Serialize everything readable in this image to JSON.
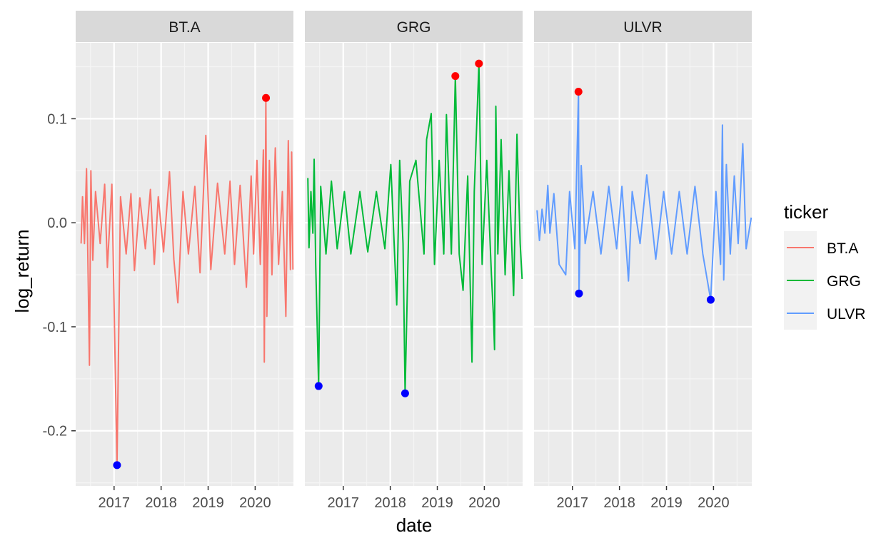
{
  "chart_data": {
    "type": "line",
    "xlabel": "date",
    "ylabel": "log_return",
    "ylim": [
      -0.253,
      0.173
    ],
    "xlim": [
      "2016-03-09",
      "2020-10-24"
    ],
    "x_ticks": [
      {
        "date": "2017-01-01",
        "label": "2017"
      },
      {
        "date": "2018-01-01",
        "label": "2018"
      },
      {
        "date": "2019-01-01",
        "label": "2019"
      },
      {
        "date": "2020-01-01",
        "label": "2020"
      }
    ],
    "y_ticks": [
      {
        "value": 0.1,
        "label": "0.1"
      },
      {
        "value": 0.0,
        "label": "0.0"
      },
      {
        "value": -0.1,
        "label": "-0.1"
      },
      {
        "value": -0.2,
        "label": "-0.2"
      }
    ],
    "grid": true,
    "background": "#EBEBEB",
    "legend": {
      "title": "ticker",
      "position": "right",
      "entries": [
        {
          "label": "BT.A",
          "color": "#F8766D"
        },
        {
          "label": "GRG",
          "color": "#00BA38"
        },
        {
          "label": "ULVR",
          "color": "#619CFF"
        }
      ]
    },
    "panels": [
      {
        "strip": "BT.A",
        "color": "#F8766D",
        "series_points": [
          {
            "x": "2016-04-20",
            "y": -0.02
          },
          {
            "x": "2016-05-01",
            "y": 0.025
          },
          {
            "x": "2016-05-16",
            "y": -0.02
          },
          {
            "x": "2016-06-01",
            "y": 0.052
          },
          {
            "x": "2016-06-24",
            "y": -0.137
          },
          {
            "x": "2016-07-05",
            "y": 0.05
          },
          {
            "x": "2016-07-20",
            "y": -0.036
          },
          {
            "x": "2016-08-10",
            "y": 0.03
          },
          {
            "x": "2016-09-15",
            "y": -0.02
          },
          {
            "x": "2016-10-20",
            "y": 0.037
          },
          {
            "x": "2016-11-10",
            "y": -0.043
          },
          {
            "x": "2016-12-15",
            "y": 0.037
          },
          {
            "x": "2017-01-24",
            "y": -0.233
          },
          {
            "x": "2017-02-20",
            "y": 0.025
          },
          {
            "x": "2017-04-05",
            "y": -0.03
          },
          {
            "x": "2017-05-12",
            "y": 0.028
          },
          {
            "x": "2017-06-08",
            "y": -0.046
          },
          {
            "x": "2017-07-20",
            "y": 0.024
          },
          {
            "x": "2017-09-01",
            "y": -0.025
          },
          {
            "x": "2017-10-10",
            "y": 0.032
          },
          {
            "x": "2017-11-09",
            "y": -0.04
          },
          {
            "x": "2017-12-10",
            "y": 0.025
          },
          {
            "x": "2018-01-20",
            "y": -0.028
          },
          {
            "x": "2018-03-07",
            "y": 0.049
          },
          {
            "x": "2018-04-10",
            "y": -0.035
          },
          {
            "x": "2018-05-11",
            "y": -0.077
          },
          {
            "x": "2018-06-20",
            "y": 0.03
          },
          {
            "x": "2018-08-01",
            "y": -0.03
          },
          {
            "x": "2018-09-20",
            "y": 0.035
          },
          {
            "x": "2018-10-30",
            "y": -0.048
          },
          {
            "x": "2018-12-14",
            "y": 0.084
          },
          {
            "x": "2019-01-22",
            "y": -0.045
          },
          {
            "x": "2019-03-15",
            "y": 0.038
          },
          {
            "x": "2019-05-10",
            "y": -0.03
          },
          {
            "x": "2019-06-20",
            "y": 0.04
          },
          {
            "x": "2019-07-25",
            "y": -0.04
          },
          {
            "x": "2019-09-06",
            "y": 0.036
          },
          {
            "x": "2019-10-25",
            "y": -0.062
          },
          {
            "x": "2019-12-01",
            "y": 0.045
          },
          {
            "x": "2019-12-20",
            "y": -0.03
          },
          {
            "x": "2020-01-15",
            "y": 0.06
          },
          {
            "x": "2020-02-10",
            "y": -0.04
          },
          {
            "x": "2020-03-05",
            "y": 0.07
          },
          {
            "x": "2020-03-12",
            "y": -0.134
          },
          {
            "x": "2020-03-24",
            "y": 0.12
          },
          {
            "x": "2020-04-01",
            "y": -0.09
          },
          {
            "x": "2020-04-20",
            "y": 0.06
          },
          {
            "x": "2020-05-10",
            "y": -0.05
          },
          {
            "x": "2020-06-05",
            "y": 0.072
          },
          {
            "x": "2020-07-01",
            "y": -0.04
          },
          {
            "x": "2020-07-30",
            "y": 0.03
          },
          {
            "x": "2020-08-26",
            "y": -0.09
          },
          {
            "x": "2020-09-14",
            "y": 0.079
          },
          {
            "x": "2020-10-01",
            "y": -0.045
          },
          {
            "x": "2020-10-10",
            "y": 0.068
          },
          {
            "x": "2020-10-20",
            "y": -0.045
          }
        ],
        "max_points": [
          {
            "x": "2020-03-25",
            "y": 0.12
          }
        ],
        "min_points": [
          {
            "x": "2017-01-24",
            "y": -0.233
          }
        ]
      },
      {
        "strip": "GRG",
        "color": "#00BA38",
        "series_points": [
          {
            "x": "2016-04-01",
            "y": 0.043
          },
          {
            "x": "2016-04-10",
            "y": -0.024
          },
          {
            "x": "2016-04-25",
            "y": 0.03
          },
          {
            "x": "2016-05-10",
            "y": -0.01
          },
          {
            "x": "2016-05-20",
            "y": 0.061
          },
          {
            "x": "2016-06-01",
            "y": -0.04
          },
          {
            "x": "2016-06-24",
            "y": -0.157
          },
          {
            "x": "2016-07-10",
            "y": 0.035
          },
          {
            "x": "2016-08-20",
            "y": -0.03
          },
          {
            "x": "2016-10-01",
            "y": 0.04
          },
          {
            "x": "2016-11-15",
            "y": -0.025
          },
          {
            "x": "2017-01-10",
            "y": 0.03
          },
          {
            "x": "2017-03-01",
            "y": -0.03
          },
          {
            "x": "2017-05-10",
            "y": 0.03
          },
          {
            "x": "2017-07-10",
            "y": -0.028
          },
          {
            "x": "2017-09-15",
            "y": 0.03
          },
          {
            "x": "2017-11-20",
            "y": -0.025
          },
          {
            "x": "2018-01-05",
            "y": 0.056
          },
          {
            "x": "2018-02-20",
            "y": -0.079
          },
          {
            "x": "2018-03-15",
            "y": 0.06
          },
          {
            "x": "2018-04-10",
            "y": -0.02
          },
          {
            "x": "2018-04-26",
            "y": -0.164
          },
          {
            "x": "2018-06-01",
            "y": 0.04
          },
          {
            "x": "2018-07-19",
            "y": 0.06
          },
          {
            "x": "2018-09-20",
            "y": -0.03
          },
          {
            "x": "2018-10-10",
            "y": 0.08
          },
          {
            "x": "2018-11-15",
            "y": 0.105
          },
          {
            "x": "2018-12-10",
            "y": -0.04
          },
          {
            "x": "2019-01-15",
            "y": 0.06
          },
          {
            "x": "2019-02-20",
            "y": -0.03
          },
          {
            "x": "2019-03-13",
            "y": 0.104
          },
          {
            "x": "2019-04-20",
            "y": -0.03
          },
          {
            "x": "2019-05-21",
            "y": 0.141
          },
          {
            "x": "2019-06-20",
            "y": -0.03
          },
          {
            "x": "2019-07-20",
            "y": -0.065
          },
          {
            "x": "2019-08-25",
            "y": 0.045
          },
          {
            "x": "2019-09-27",
            "y": -0.134
          },
          {
            "x": "2019-10-15",
            "y": 0.03
          },
          {
            "x": "2019-11-20",
            "y": 0.153
          },
          {
            "x": "2019-12-15",
            "y": -0.04
          },
          {
            "x": "2020-01-20",
            "y": 0.06
          },
          {
            "x": "2020-02-25",
            "y": -0.05
          },
          {
            "x": "2020-03-12",
            "y": -0.09
          },
          {
            "x": "2020-03-20",
            "y": -0.122
          },
          {
            "x": "2020-03-30",
            "y": 0.112
          },
          {
            "x": "2020-04-15",
            "y": -0.03
          },
          {
            "x": "2020-05-10",
            "y": 0.08
          },
          {
            "x": "2020-06-10",
            "y": -0.05
          },
          {
            "x": "2020-07-10",
            "y": 0.05
          },
          {
            "x": "2020-08-15",
            "y": -0.07
          },
          {
            "x": "2020-09-10",
            "y": 0.085
          },
          {
            "x": "2020-10-05",
            "y": -0.02
          },
          {
            "x": "2020-10-20",
            "y": -0.054
          }
        ],
        "max_points": [
          {
            "x": "2019-05-21",
            "y": 0.141
          },
          {
            "x": "2019-11-20",
            "y": 0.153
          }
        ],
        "min_points": [
          {
            "x": "2016-06-24",
            "y": -0.157
          },
          {
            "x": "2018-04-26",
            "y": -0.164
          }
        ]
      },
      {
        "strip": "ULVR",
        "color": "#619CFF",
        "series_points": [
          {
            "x": "2016-04-01",
            "y": 0.012
          },
          {
            "x": "2016-04-20",
            "y": -0.017
          },
          {
            "x": "2016-05-10",
            "y": 0.013
          },
          {
            "x": "2016-06-01",
            "y": -0.01
          },
          {
            "x": "2016-06-24",
            "y": 0.036
          },
          {
            "x": "2016-07-10",
            "y": -0.01
          },
          {
            "x": "2016-08-10",
            "y": 0.028
          },
          {
            "x": "2016-09-20",
            "y": -0.04
          },
          {
            "x": "2016-11-10",
            "y": -0.05
          },
          {
            "x": "2016-12-10",
            "y": 0.03
          },
          {
            "x": "2017-01-20",
            "y": -0.025
          },
          {
            "x": "2017-02-17",
            "y": 0.126
          },
          {
            "x": "2017-02-21",
            "y": -0.068
          },
          {
            "x": "2017-03-10",
            "y": 0.055
          },
          {
            "x": "2017-04-10",
            "y": -0.02
          },
          {
            "x": "2017-06-10",
            "y": 0.03
          },
          {
            "x": "2017-08-10",
            "y": -0.03
          },
          {
            "x": "2017-10-10",
            "y": 0.035
          },
          {
            "x": "2017-12-10",
            "y": -0.025
          },
          {
            "x": "2018-01-20",
            "y": 0.035
          },
          {
            "x": "2018-03-12",
            "y": -0.056
          },
          {
            "x": "2018-04-10",
            "y": 0.03
          },
          {
            "x": "2018-06-10",
            "y": -0.02
          },
          {
            "x": "2018-08-01",
            "y": 0.046
          },
          {
            "x": "2018-10-10",
            "y": -0.035
          },
          {
            "x": "2018-12-10",
            "y": 0.03
          },
          {
            "x": "2019-02-10",
            "y": -0.03
          },
          {
            "x": "2019-04-10",
            "y": 0.03
          },
          {
            "x": "2019-06-10",
            "y": -0.03
          },
          {
            "x": "2019-08-10",
            "y": 0.035
          },
          {
            "x": "2019-10-10",
            "y": -0.03
          },
          {
            "x": "2019-12-10",
            "y": -0.074
          },
          {
            "x": "2020-01-20",
            "y": 0.03
          },
          {
            "x": "2020-02-25",
            "y": -0.04
          },
          {
            "x": "2020-03-10",
            "y": 0.094
          },
          {
            "x": "2020-03-20",
            "y": -0.055
          },
          {
            "x": "2020-04-10",
            "y": 0.056
          },
          {
            "x": "2020-05-10",
            "y": -0.03
          },
          {
            "x": "2020-06-10",
            "y": 0.045
          },
          {
            "x": "2020-07-10",
            "y": -0.02
          },
          {
            "x": "2020-08-15",
            "y": 0.076
          },
          {
            "x": "2020-09-10",
            "y": -0.025
          },
          {
            "x": "2020-10-20",
            "y": 0.005
          }
        ],
        "max_points": [
          {
            "x": "2017-02-17",
            "y": 0.126
          }
        ],
        "min_points": [
          {
            "x": "2017-02-21",
            "y": -0.068
          },
          {
            "x": "2019-12-10",
            "y": -0.074
          }
        ]
      }
    ],
    "max_marker_color": "#FF0000",
    "min_marker_color": "#0000FF"
  }
}
